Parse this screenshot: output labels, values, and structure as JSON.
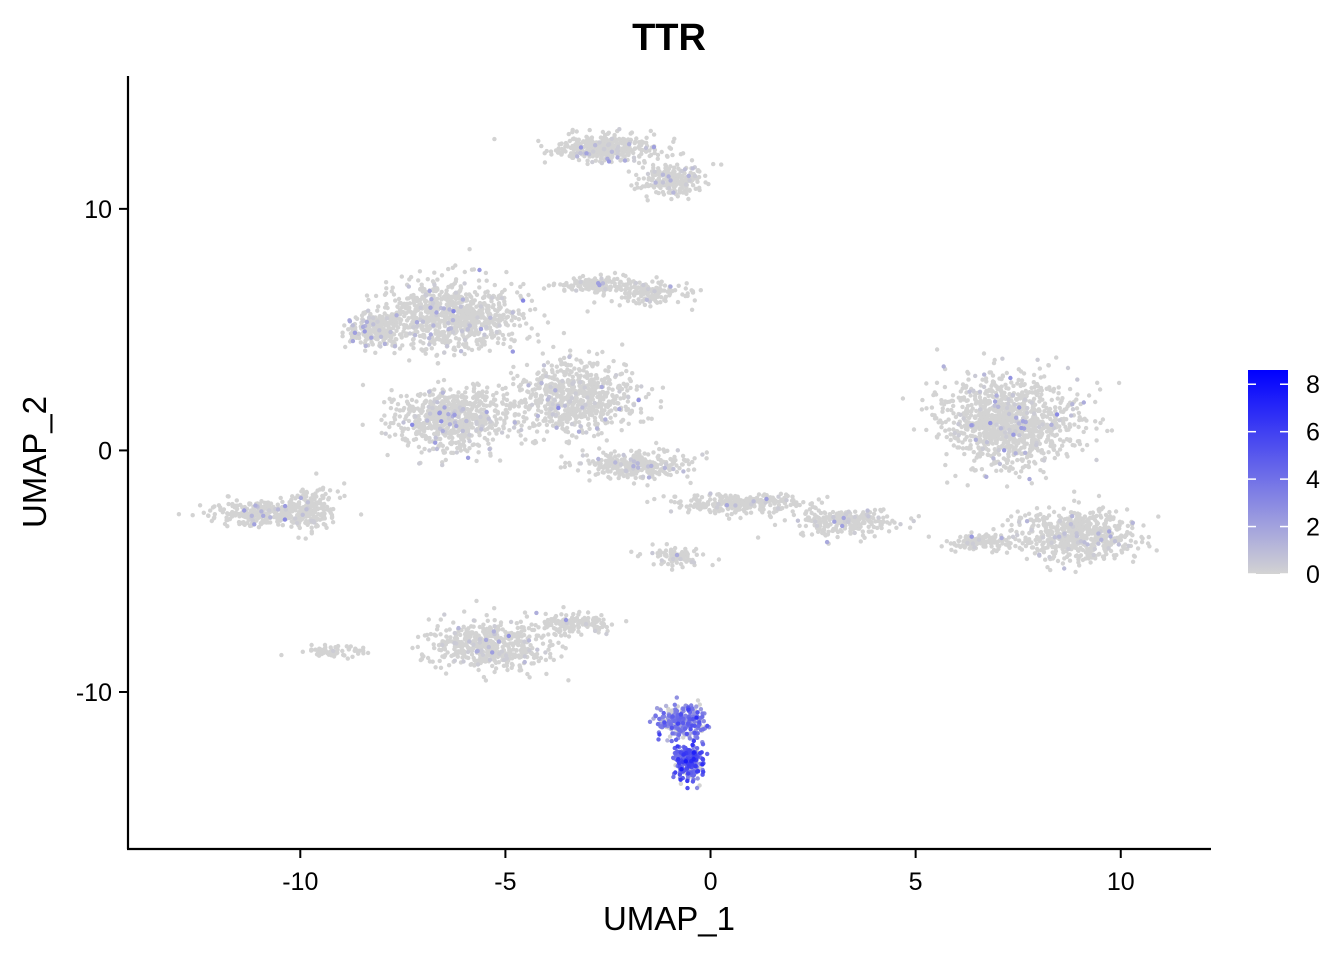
{
  "chart_data": {
    "type": "scatter",
    "title": "TTR",
    "xlabel": "UMAP_1",
    "ylabel": "UMAP_2",
    "xlim": [
      -14.2,
      12.2
    ],
    "ylim": [
      -16.5,
      15.5
    ],
    "x_ticks": [
      -10,
      -5,
      0,
      5,
      10
    ],
    "x_tick_labels": [
      "-10",
      "-5",
      "0",
      "5",
      "10"
    ],
    "y_ticks": [
      -10,
      0,
      10
    ],
    "y_tick_labels": [
      "-10",
      "0",
      "10"
    ],
    "grid": false,
    "legend": {
      "placement": "right",
      "type": "colorbar",
      "min": 0,
      "max": 8.6,
      "ticks": [
        0,
        2,
        4,
        6,
        8
      ],
      "tick_labels": [
        "0",
        "2",
        "4",
        "6",
        "8"
      ],
      "low_color": "#d3d3d3",
      "high_color": "#0000ff"
    },
    "colors": {
      "low": "#d3d3d3",
      "high": "#0000ff"
    },
    "clusters": [
      {
        "center": [
          -2.5,
          12.5
        ],
        "spread": [
          1.2,
          0.5
        ],
        "n": 380,
        "expr": 0.3
      },
      {
        "center": [
          -0.9,
          11.2
        ],
        "spread": [
          0.7,
          0.6
        ],
        "n": 220,
        "expr": 0.3
      },
      {
        "center": [
          -6.3,
          5.6
        ],
        "spread": [
          1.6,
          1.3
        ],
        "n": 900,
        "expr": 0.35
      },
      {
        "center": [
          -8.2,
          5.0
        ],
        "spread": [
          0.6,
          0.6
        ],
        "n": 200,
        "expr": 1.2
      },
      {
        "center": [
          -2.8,
          6.9
        ],
        "spread": [
          0.9,
          0.3
        ],
        "n": 150,
        "expr": 0.2
      },
      {
        "center": [
          -1.5,
          6.5
        ],
        "spread": [
          0.8,
          0.4
        ],
        "n": 150,
        "expr": 0.2
      },
      {
        "center": [
          -6.3,
          1.3
        ],
        "spread": [
          1.2,
          1.1
        ],
        "n": 700,
        "expr": 0.4
      },
      {
        "center": [
          -3.3,
          2.2
        ],
        "spread": [
          1.4,
          1.3
        ],
        "n": 700,
        "expr": 0.3
      },
      {
        "center": [
          -1.8,
          -0.6
        ],
        "spread": [
          1.2,
          0.5
        ],
        "n": 300,
        "expr": 0.2
      },
      {
        "center": [
          0.8,
          -2.2
        ],
        "spread": [
          1.6,
          0.4
        ],
        "n": 280,
        "expr": 0.2
      },
      {
        "center": [
          3.3,
          -3.0
        ],
        "spread": [
          1.1,
          0.5
        ],
        "n": 250,
        "expr": 0.2
      },
      {
        "center": [
          -0.8,
          -4.4
        ],
        "spread": [
          0.6,
          0.4
        ],
        "n": 80,
        "expr": 0.1
      },
      {
        "center": [
          -10.8,
          -2.6
        ],
        "spread": [
          1.2,
          0.5
        ],
        "n": 300,
        "expr": 0.2
      },
      {
        "center": [
          -9.7,
          -2.3
        ],
        "spread": [
          0.6,
          0.8
        ],
        "n": 150,
        "expr": 0.2
      },
      {
        "center": [
          -5.4,
          -8.1
        ],
        "spread": [
          1.3,
          0.9
        ],
        "n": 500,
        "expr": 0.2
      },
      {
        "center": [
          -3.3,
          -7.2
        ],
        "spread": [
          0.8,
          0.4
        ],
        "n": 150,
        "expr": 0.2
      },
      {
        "center": [
          -9.2,
          -8.3
        ],
        "spread": [
          0.7,
          0.2
        ],
        "n": 60,
        "expr": 0.1
      },
      {
        "center": [
          7.3,
          1.2
        ],
        "spread": [
          1.5,
          1.7
        ],
        "n": 1100,
        "expr": 0.3
      },
      {
        "center": [
          8.9,
          -3.5
        ],
        "spread": [
          1.3,
          0.9
        ],
        "n": 600,
        "expr": 0.3
      },
      {
        "center": [
          6.6,
          -3.8
        ],
        "spread": [
          0.8,
          0.3
        ],
        "n": 120,
        "expr": 0.2
      },
      {
        "center": [
          -0.7,
          -11.2
        ],
        "spread": [
          0.5,
          0.6
        ],
        "n": 250,
        "expr": 3.2
      },
      {
        "center": [
          -0.55,
          -12.9
        ],
        "spread": [
          0.3,
          0.7
        ],
        "n": 260,
        "expr": 4.5
      }
    ]
  }
}
